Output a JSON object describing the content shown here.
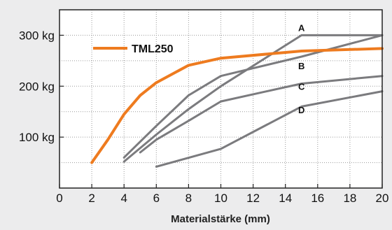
{
  "chart_data": {
    "type": "line",
    "title": "",
    "xlabel": "Materialstärke (mm)",
    "ylabel": "",
    "xlim": [
      0,
      20
    ],
    "ylim": [
      0,
      350
    ],
    "xticks": [
      0,
      2,
      4,
      6,
      8,
      10,
      12,
      14,
      16,
      18,
      20
    ],
    "yticks": [
      100,
      200,
      300
    ],
    "ytick_labels": [
      "100 kg",
      "200 kg",
      "300 kg"
    ],
    "grid": true,
    "legend_position": "top-left",
    "colors": {
      "background": "#ececed",
      "plot_background": "#ffffff",
      "highlight": "#ee7b1f",
      "gray": "#7b7b7e",
      "grid": "#9a9a9a"
    },
    "series": [
      {
        "name": "TML250",
        "color": "#ee7b1f",
        "width": 4,
        "legend": true,
        "x": [
          2,
          3,
          4,
          5,
          6,
          8,
          10,
          15,
          20
        ],
        "y": [
          50,
          95,
          145,
          182,
          207,
          241,
          255,
          269,
          274
        ]
      },
      {
        "name": "A",
        "color": "#7b7b7e",
        "width": 3,
        "label_at": [
          15,
          308
        ],
        "x": [
          4,
          6,
          8,
          10,
          15,
          20
        ],
        "y": [
          52,
          105,
          155,
          200,
          300,
          300
        ]
      },
      {
        "name": "B",
        "color": "#7b7b7e",
        "width": 3,
        "label_at": [
          15,
          233
        ],
        "x": [
          4,
          6,
          8,
          10,
          15,
          20
        ],
        "y": [
          60,
          122,
          182,
          220,
          258,
          300
        ]
      },
      {
        "name": "C",
        "color": "#7b7b7e",
        "width": 3,
        "label_at": [
          15,
          193
        ],
        "x": [
          5,
          6,
          8,
          10,
          15,
          20
        ],
        "y": [
          70,
          95,
          132,
          170,
          205,
          220
        ]
      },
      {
        "name": "D",
        "color": "#7b7b7e",
        "width": 3,
        "label_at": [
          15,
          147
        ],
        "x": [
          6,
          10,
          15,
          20
        ],
        "y": [
          42,
          77,
          160,
          190
        ]
      }
    ]
  }
}
